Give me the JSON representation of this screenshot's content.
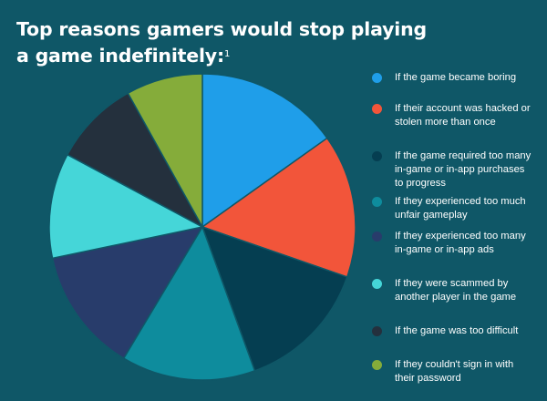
{
  "chart_data": {
    "type": "pie",
    "title_lines": [
      "Top reasons gamers would stop playing",
      "a game indefinitely:"
    ],
    "title_footnote": "1",
    "slices": [
      {
        "label": "If the game became boring",
        "value": 15,
        "color": "#1f9ee9"
      },
      {
        "label": "If their account was hacked or stolen more than once",
        "value": 15,
        "color": "#f2553a"
      },
      {
        "label": "If the game required too many in-game or in-app purchases to progress",
        "value": 14,
        "color": "#053e51"
      },
      {
        "label": "If they experienced too much unfair gameplay",
        "value": 14,
        "color": "#0e8c9d"
      },
      {
        "label": "If they experienced too many in-game or in-app ads",
        "value": 13,
        "color": "#283c6b"
      },
      {
        "label": "If they were scammed by another player in the game",
        "value": 11,
        "color": "#45d6d8"
      },
      {
        "label": "If the game was too difficult",
        "value": 9,
        "color": "#24303d"
      },
      {
        "label": "If they couldn't sign in with their password",
        "value": 8,
        "color": "#85ac3a"
      }
    ],
    "legend_position": "right"
  }
}
